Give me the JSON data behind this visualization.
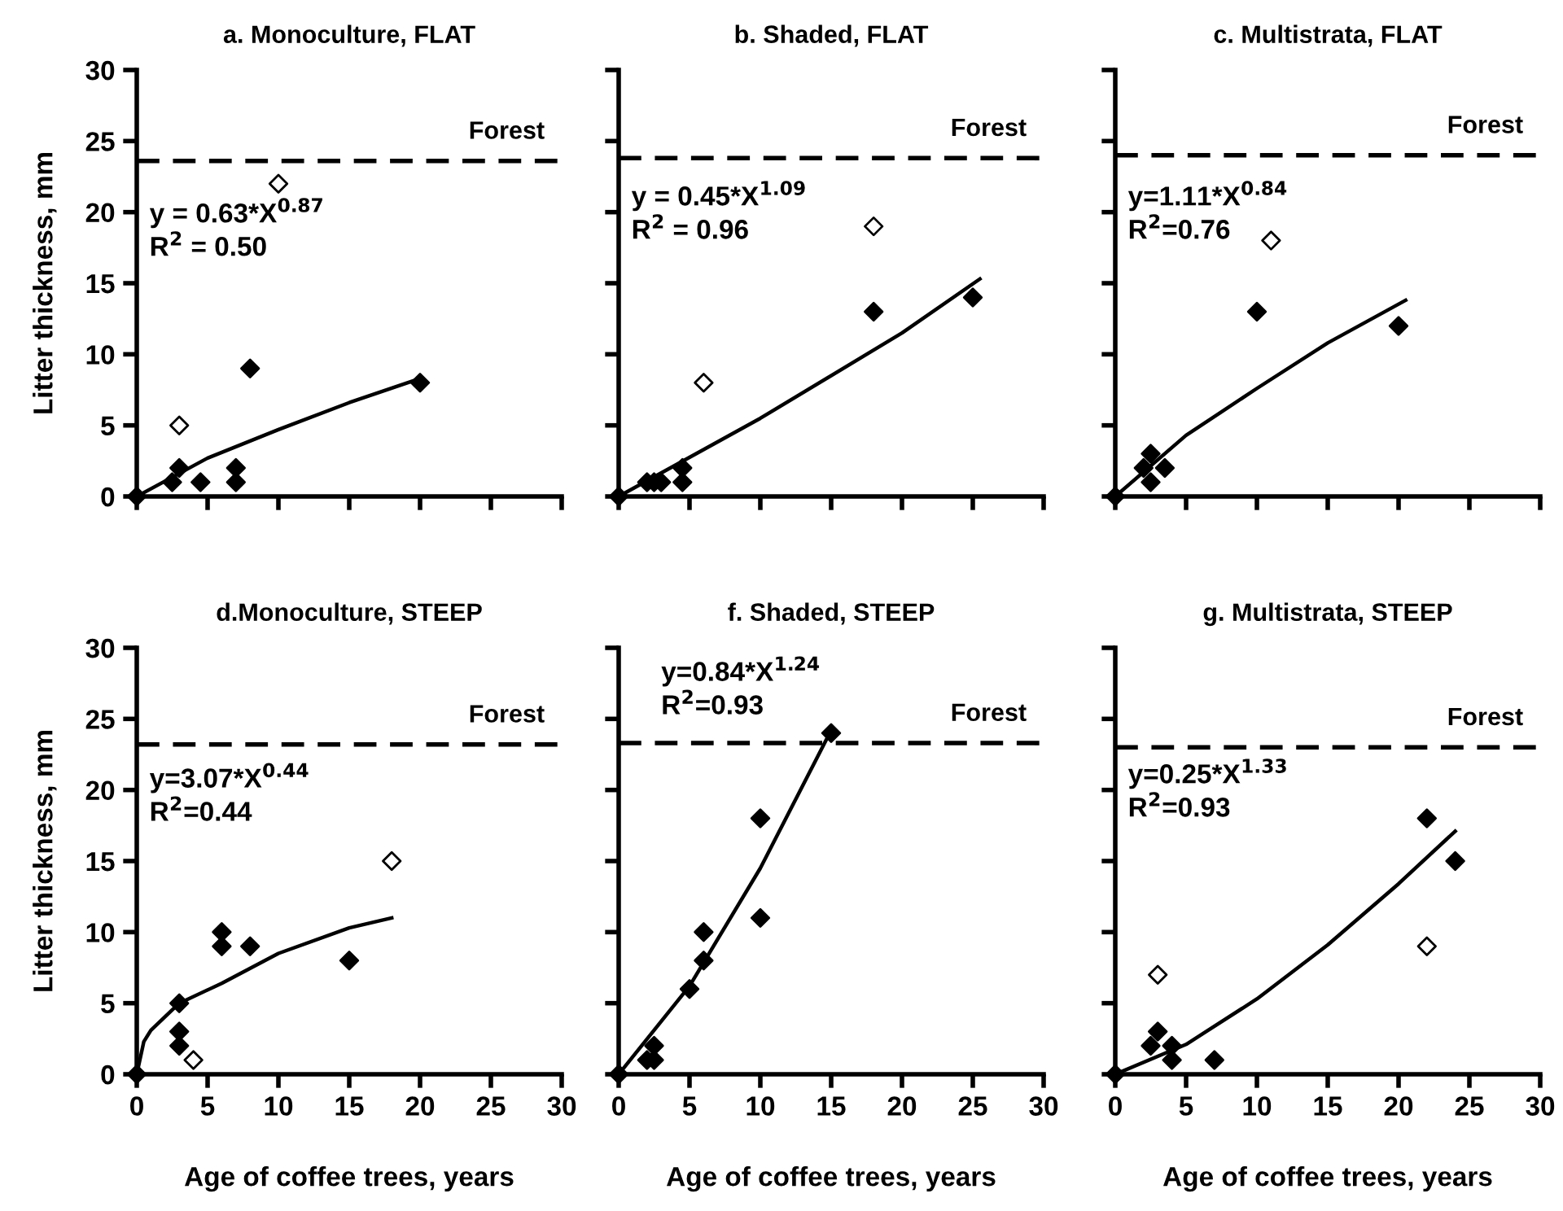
{
  "chart_data": [
    {
      "type": "scatter",
      "title": "a. Monoculture, FLAT",
      "ylabel": "Litter thickness, mm",
      "xlim": [
        0,
        30
      ],
      "ylim": [
        0,
        30
      ],
      "xticks": [
        0,
        5,
        10,
        15,
        20,
        25,
        30
      ],
      "yticks": [
        0,
        5,
        10,
        15,
        20,
        25,
        30
      ],
      "tick_labels": "y",
      "grid": false,
      "legend": false,
      "ref_lines": [
        {
          "axis": "y",
          "value": 23.6,
          "label": "Forest",
          "color": "#000000",
          "line_style": "dashed"
        }
      ],
      "annotations": [
        "y = 0.63*X$^{0.87}$",
        "R$^{2}$ = 0.50"
      ],
      "series": [
        {
          "marker": "diamond",
          "color": "#000000",
          "x": [
            0,
            2.5,
            3,
            4.5,
            7,
            7,
            8,
            20
          ],
          "values": [
            0,
            1,
            2,
            1,
            2,
            1,
            9,
            8
          ]
        },
        {
          "marker": "diamond",
          "color": "#ffffff",
          "x": [
            3,
            10
          ],
          "values": [
            5,
            22
          ]
        },
        {
          "type": "line",
          "marker": "none",
          "color": "#000000",
          "x": [
            0,
            5,
            10,
            15,
            20
          ],
          "values": [
            0,
            2.7,
            4.7,
            6.6,
            8.3
          ]
        }
      ]
    },
    {
      "type": "scatter",
      "title": "b. Shaded, FLAT",
      "xlim": [
        0,
        30
      ],
      "ylim": [
        0,
        30
      ],
      "xticks": [
        0,
        5,
        10,
        15,
        20,
        25,
        30
      ],
      "yticks": [
        0,
        5,
        10,
        15,
        20,
        25,
        30
      ],
      "tick_labels": false,
      "grid": false,
      "legend": false,
      "ref_lines": [
        {
          "axis": "y",
          "value": 23.8,
          "label": "Forest",
          "color": "#000000",
          "line_style": "dashed"
        }
      ],
      "annotations": [
        "y = 0.45*X$^{1.09}$",
        "R$^{2}$ = 0.96"
      ],
      "series": [
        {
          "marker": "diamond",
          "color": "#000000",
          "x": [
            0,
            2,
            2.5,
            3,
            4.5,
            4.5,
            18,
            25
          ],
          "values": [
            0,
            1,
            1,
            1,
            1,
            2,
            13,
            14
          ]
        },
        {
          "marker": "diamond",
          "color": "#ffffff",
          "x": [
            6,
            18
          ],
          "values": [
            8,
            19
          ]
        },
        {
          "type": "line",
          "marker": "none",
          "color": "#000000",
          "x": [
            0,
            10,
            20,
            25.5
          ],
          "values": [
            0,
            5.5,
            11.5,
            15.3
          ]
        }
      ]
    },
    {
      "type": "scatter",
      "title": "c. Multistrata, FLAT",
      "xlim": [
        0,
        30
      ],
      "ylim": [
        0,
        30
      ],
      "xticks": [
        0,
        5,
        10,
        15,
        20,
        25,
        30
      ],
      "yticks": [
        0,
        5,
        10,
        15,
        20,
        25,
        30
      ],
      "tick_labels": false,
      "grid": false,
      "legend": false,
      "ref_lines": [
        {
          "axis": "y",
          "value": 24,
          "label": "Forest",
          "color": "#000000",
          "line_style": "dashed"
        }
      ],
      "annotations": [
        "y=1.11*X$^{0.84}$",
        "R$^{2}$=0.76"
      ],
      "series": [
        {
          "marker": "diamond",
          "color": "#000000",
          "x": [
            0,
            2,
            2.5,
            2.5,
            3.5,
            10,
            20
          ],
          "values": [
            0,
            2,
            3,
            1,
            2,
            13,
            12
          ]
        },
        {
          "marker": "diamond",
          "color": "#ffffff",
          "x": [
            11
          ],
          "values": [
            18
          ]
        },
        {
          "type": "line",
          "marker": "none",
          "color": "#000000",
          "x": [
            0,
            5,
            10,
            15,
            20.5
          ],
          "values": [
            0,
            4.3,
            7.6,
            10.8,
            13.8
          ]
        }
      ]
    },
    {
      "type": "scatter",
      "title": "d.Monoculture, STEEP",
      "xlabel": "Age of coffee trees, years",
      "ylabel": "Litter thickness, mm",
      "xlim": [
        0,
        30
      ],
      "ylim": [
        0,
        30
      ],
      "xticks": [
        0,
        5,
        10,
        15,
        20,
        25,
        30
      ],
      "yticks": [
        0,
        5,
        10,
        15,
        20,
        25,
        30
      ],
      "grid": false,
      "legend": false,
      "ref_lines": [
        {
          "axis": "y",
          "value": 23.2,
          "label": "Forest",
          "color": "#000000",
          "line_style": "dashed"
        }
      ],
      "annotations": [
        "y=3.07*X$^{0.44}$",
        "R$^{2}$=0.44"
      ],
      "series": [
        {
          "marker": "diamond",
          "color": "#000000",
          "x": [
            0,
            3,
            3,
            3,
            6,
            6,
            8,
            15
          ],
          "values": [
            0,
            5,
            3,
            2,
            10,
            9,
            9,
            8
          ]
        },
        {
          "marker": "diamond",
          "color": "#ffffff",
          "x": [
            4,
            18
          ],
          "values": [
            1,
            15
          ]
        },
        {
          "type": "line",
          "marker": "none",
          "color": "#000000",
          "x": [
            0,
            0.5,
            1,
            3,
            6,
            10,
            15,
            18
          ],
          "values": [
            0,
            2.3,
            3.1,
            5,
            6.4,
            8.5,
            10.3,
            11
          ]
        }
      ]
    },
    {
      "type": "scatter",
      "title": "f. Shaded, STEEP",
      "xlabel": "Age of coffee trees, years",
      "xlim": [
        0,
        30
      ],
      "ylim": [
        0,
        30
      ],
      "xticks": [
        0,
        5,
        10,
        15,
        20,
        25,
        30
      ],
      "yticks": [
        0,
        5,
        10,
        15,
        20,
        25,
        30
      ],
      "tick_labels": "x",
      "grid": false,
      "legend": false,
      "ref_lines": [
        {
          "axis": "y",
          "value": 23.3,
          "label": "Forest",
          "color": "#000000",
          "line_style": "dashed"
        }
      ],
      "annotations": [
        "y=0.84*X$^{1.24}$",
        "R$^{2}$=0.93"
      ],
      "series": [
        {
          "marker": "diamond",
          "color": "#000000",
          "x": [
            0,
            2,
            2.5,
            2.5,
            5,
            6,
            6,
            10,
            10,
            15
          ],
          "values": [
            0,
            1,
            1,
            2,
            6,
            8,
            10,
            18,
            11,
            24
          ]
        },
        {
          "type": "line",
          "marker": "none",
          "color": "#000000",
          "x": [
            0,
            5,
            10,
            15
          ],
          "values": [
            0,
            6.2,
            14.5,
            24.2
          ]
        }
      ]
    },
    {
      "type": "scatter",
      "title": "g. Multistrata, STEEP",
      "xlabel": "Age of coffee trees, years",
      "xlim": [
        0,
        30
      ],
      "ylim": [
        0,
        30
      ],
      "xticks": [
        0,
        5,
        10,
        15,
        20,
        25,
        30
      ],
      "yticks": [
        0,
        5,
        10,
        15,
        20,
        25,
        30
      ],
      "tick_labels": "x",
      "grid": false,
      "legend": false,
      "ref_lines": [
        {
          "axis": "y",
          "value": 23,
          "label": "Forest",
          "color": "#000000",
          "line_style": "dashed"
        }
      ],
      "annotations": [
        "y=0.25*X$^{1.33}$",
        "R$^{2}$=0.93"
      ],
      "series": [
        {
          "marker": "diamond",
          "color": "#000000",
          "x": [
            0,
            3,
            2.5,
            4,
            4,
            7,
            22,
            24
          ],
          "values": [
            0,
            3,
            2,
            2,
            1,
            1,
            18,
            15
          ]
        },
        {
          "marker": "diamond",
          "color": "#ffffff",
          "x": [
            3,
            22
          ],
          "values": [
            7,
            9
          ]
        },
        {
          "type": "line",
          "marker": "none",
          "color": "#000000",
          "x": [
            0,
            5,
            10,
            15,
            20,
            24
          ],
          "values": [
            0,
            2.1,
            5.3,
            9.1,
            13.4,
            17.1
          ]
        }
      ]
    }
  ]
}
